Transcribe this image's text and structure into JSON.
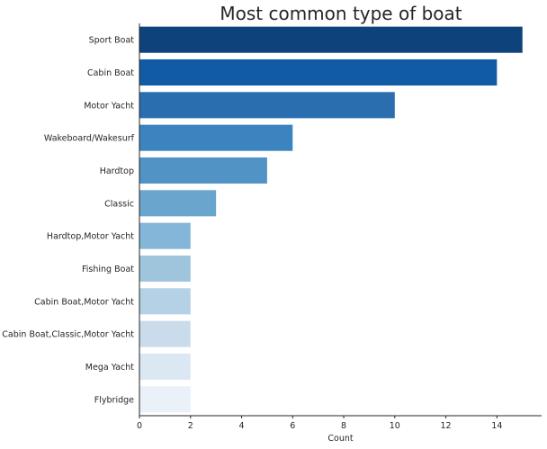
{
  "chart_data": {
    "type": "bar",
    "orientation": "horizontal",
    "title": "Most common type of boat",
    "xlabel": "Count",
    "ylabel": "",
    "xlim": [
      0,
      15.75
    ],
    "xticks": [
      0,
      2,
      4,
      6,
      8,
      10,
      12,
      14
    ],
    "grid": false,
    "legend": "none",
    "categories": [
      "Sport Boat",
      "Cabin Boat",
      "Motor Yacht",
      "Wakeboard/Wakesurf",
      "Hardtop",
      "Classic",
      "Hardtop,Motor Yacht",
      "Fishing Boat",
      "Cabin Boat,Motor Yacht",
      "Cabin Boat,Classic,Motor Yacht",
      "Mega Yacht",
      "Flybridge"
    ],
    "values": [
      15,
      14,
      10,
      6,
      5,
      3,
      2,
      2,
      2,
      2,
      2,
      2
    ],
    "colors": [
      "#0e427b",
      "#115ba5",
      "#2b6eb0",
      "#3b84bf",
      "#5293c6",
      "#6aa5cd",
      "#84b6d9",
      "#9fc5dc",
      "#b5d1e5",
      "#cadcec",
      "#dbe7f2",
      "#ebf1f9"
    ]
  }
}
